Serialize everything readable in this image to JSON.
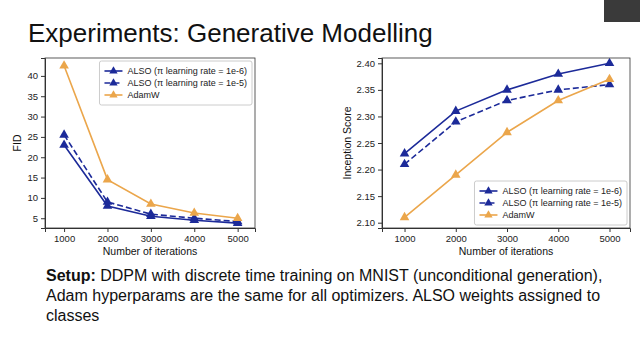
{
  "slide": {
    "title": "Experiments: Generative Modelling",
    "setup_label": "Setup:",
    "setup_text": "DDPM with discrete time training on MNIST (unconditional generation), Adam hyperparams are the same for all optimizers. ALSO weights assigned to classes"
  },
  "chart_data": [
    {
      "type": "line",
      "x_label": "Number of iterations",
      "y_label": "FID",
      "x": [
        1000,
        2000,
        3000,
        4000,
        5000
      ],
      "series": [
        {
          "name": "ALSO (π learning rate = 1e-6)",
          "color": "#1c2a99",
          "marker": "triangle",
          "line_style": "solid",
          "values": [
            23,
            8,
            5.5,
            4.5,
            3.8
          ]
        },
        {
          "name": "ALSO (π learning rate = 1e-5)",
          "color": "#1c2a99",
          "marker": "triangle",
          "line_style": "dashed",
          "values": [
            25.5,
            9,
            6,
            5,
            4.2
          ]
        },
        {
          "name": "AdamW",
          "color": "#eba64b",
          "marker": "triangle",
          "line_style": "solid",
          "values": [
            42.5,
            14.5,
            8.5,
            6.3,
            5
          ]
        }
      ],
      "xlim": [
        560,
        5400
      ],
      "xticks": [
        1000,
        2000,
        3000,
        4000,
        5000
      ],
      "ylim": [
        2.6,
        44.4
      ],
      "yticks": [
        5,
        10,
        15,
        20,
        25,
        30,
        35,
        40
      ],
      "grid": false,
      "legend": "upper right"
    },
    {
      "type": "line",
      "x_label": "Number of iterations",
      "y_label": "Inception Score",
      "x": [
        1000,
        2000,
        3000,
        4000,
        5000
      ],
      "series": [
        {
          "name": "ALSO (π learning rate = 1e-6)",
          "color": "#1c2a99",
          "marker": "triangle",
          "line_style": "solid",
          "values": [
            2.23,
            2.31,
            2.35,
            2.38,
            2.4
          ]
        },
        {
          "name": "ALSO (π learning rate = 1e-5)",
          "color": "#1c2a99",
          "marker": "triangle",
          "line_style": "dashed",
          "values": [
            2.21,
            2.29,
            2.33,
            2.35,
            2.36
          ]
        },
        {
          "name": "AdamW",
          "color": "#eba64b",
          "marker": "triangle",
          "line_style": "solid",
          "values": [
            2.11,
            2.19,
            2.27,
            2.33,
            2.37
          ]
        }
      ],
      "xlim": [
        560,
        5400
      ],
      "xticks": [
        1000,
        2000,
        3000,
        4000,
        5000
      ],
      "ylim": [
        2.09,
        2.41
      ],
      "yticks": [
        {
          "value": 2.1,
          "label": "2.10"
        },
        2.15,
        {
          "value": 2.2,
          "label": "2.20"
        },
        2.25,
        {
          "value": 2.3,
          "label": "2.30"
        },
        2.35,
        {
          "value": 2.4,
          "label": "2.40"
        }
      ],
      "grid": false,
      "legend": "lower right"
    }
  ]
}
